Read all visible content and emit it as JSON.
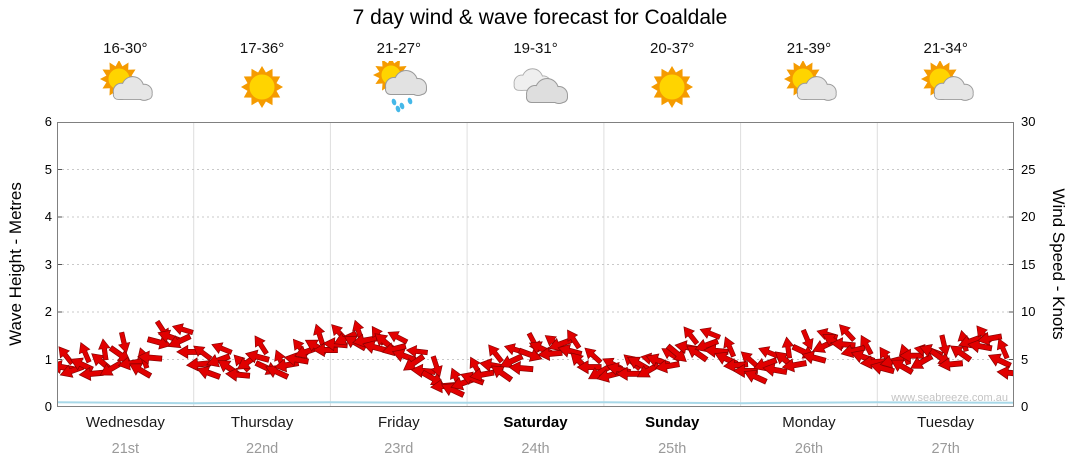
{
  "title": "7 day wind & wave forecast for Coaldale",
  "watermark": "www.seabreeze.com.au",
  "colors": {
    "arrow_red": "#e10000",
    "arrow_outline": "#8a0000",
    "wave_line": "#a8d8e8",
    "grid": "#c9c9c9",
    "date_gray": "#9a9a9a"
  },
  "axes": {
    "left_label": "Wave Height - Metres",
    "right_label": "Wind Speed - Knots",
    "left_ticks": [
      0,
      1,
      2,
      3,
      4,
      5,
      6
    ],
    "right_ticks": [
      0,
      5,
      10,
      15,
      20,
      25,
      30
    ]
  },
  "days": [
    {
      "name": "Wednesday",
      "date": "21st",
      "temp": "16-30°",
      "icon": "partly-cloudy",
      "bold": false
    },
    {
      "name": "Thursday",
      "date": "22nd",
      "temp": "17-36°",
      "icon": "sunny",
      "bold": false
    },
    {
      "name": "Friday",
      "date": "23rd",
      "temp": "21-27°",
      "icon": "rain",
      "bold": false
    },
    {
      "name": "Saturday",
      "date": "24th",
      "temp": "19-31°",
      "icon": "cloudy",
      "bold": true
    },
    {
      "name": "Sunday",
      "date": "25th",
      "temp": "20-37°",
      "icon": "sunny",
      "bold": true
    },
    {
      "name": "Monday",
      "date": "26th",
      "temp": "21-39°",
      "icon": "partly-cloudy",
      "bold": false
    },
    {
      "name": "Tuesday",
      "date": "27th",
      "temp": "21-34°",
      "icon": "partly-cloudy",
      "bold": false
    }
  ],
  "chart_data": {
    "type": "scatter",
    "title": "7 day wind & wave forecast for Coaldale",
    "x_categories": [
      "Wednesday 21st",
      "Thursday 22nd",
      "Friday 23rd",
      "Saturday 24th",
      "Sunday 25th",
      "Monday 26th",
      "Tuesday 27th"
    ],
    "y_left": {
      "label": "Wave Height - Metres",
      "range": [
        0,
        6
      ]
    },
    "y_right": {
      "label": "Wind Speed - Knots",
      "range": [
        0,
        30
      ]
    },
    "grid": {
      "horizontal_lines": [
        1,
        2,
        3,
        4,
        5
      ],
      "vertical_day_separators": true
    },
    "wind_arrows": {
      "name": "Wind Speed",
      "units": "knots",
      "color": "#e10000",
      "samples_per_day": 14,
      "values": [
        4.2,
        3.8,
        4.5,
        3.5,
        4.8,
        4.0,
        5.5,
        4.6,
        3.9,
        5.2,
        6.8,
        7.4,
        6.9,
        5.8,
        4.5,
        3.6,
        4.9,
        4.2,
        3.4,
        4.7,
        5.3,
        4.1,
        3.7,
        4.4,
        5.0,
        5.8,
        6.4,
        6.0,
        6.6,
        7.2,
        6.8,
        7.0,
        6.3,
        6.9,
        6.1,
        5.4,
        4.6,
        3.8,
        3.0,
        2.2,
        1.8,
        2.5,
        3.0,
        3.4,
        4.4,
        3.6,
        4.8,
        4.1,
        5.5,
        6.2,
        5.6,
        6.6,
        5.9,
        4.8,
        4.2,
        3.6,
        3.3,
        4.0,
        3.5,
        4.6,
        3.8,
        4.9,
        4.3,
        5.6,
        6.3,
        5.7,
        6.5,
        5.9,
        5.1,
        4.4,
        3.8,
        3.2,
        4.5,
        3.9,
        5.0,
        4.4,
        5.8,
        5.2,
        6.4,
        7.0,
        6.6,
        5.9,
        5.3,
        4.7,
        4.1,
        4.8,
        4.3,
        5.4,
        4.7,
        5.9,
        5.2,
        4.5,
        5.7,
        6.9,
        6.4,
        7.2,
        4.9,
        3.6
      ],
      "angles_deg": [
        190,
        160,
        205,
        175,
        220,
        150,
        35,
        170,
        210,
        185,
        15,
        200,
        155,
        180,
        175,
        200,
        160,
        215,
        185,
        145,
        195,
        25,
        205,
        170,
        190,
        160,
        210,
        180,
        185,
        155,
        210,
        170,
        195,
        220,
        165,
        200,
        145,
        185,
        30,
        175,
        205,
        160,
        200,
        170,
        190,
        215,
        155,
        185,
        20,
        205,
        175,
        160,
        195,
        225,
        180,
        150,
        165,
        195,
        180,
        210,
        150,
        200,
        170,
        40,
        190,
        215,
        160,
        185,
        205,
        175,
        180,
        205,
        160,
        190,
        220,
        170,
        25,
        195,
        155,
        210,
        185,
        165,
        200,
        175,
        195,
        165,
        210,
        180,
        150,
        200,
        35,
        175,
        215,
        160,
        190,
        170,
        205,
        185
      ]
    },
    "wave_line": {
      "name": "Wave Height",
      "units": "metres",
      "color": "#a8d8e8",
      "values": [
        0.1,
        0.08,
        0.1,
        0.09,
        0.1,
        0.08,
        0.1,
        0.09
      ]
    }
  }
}
